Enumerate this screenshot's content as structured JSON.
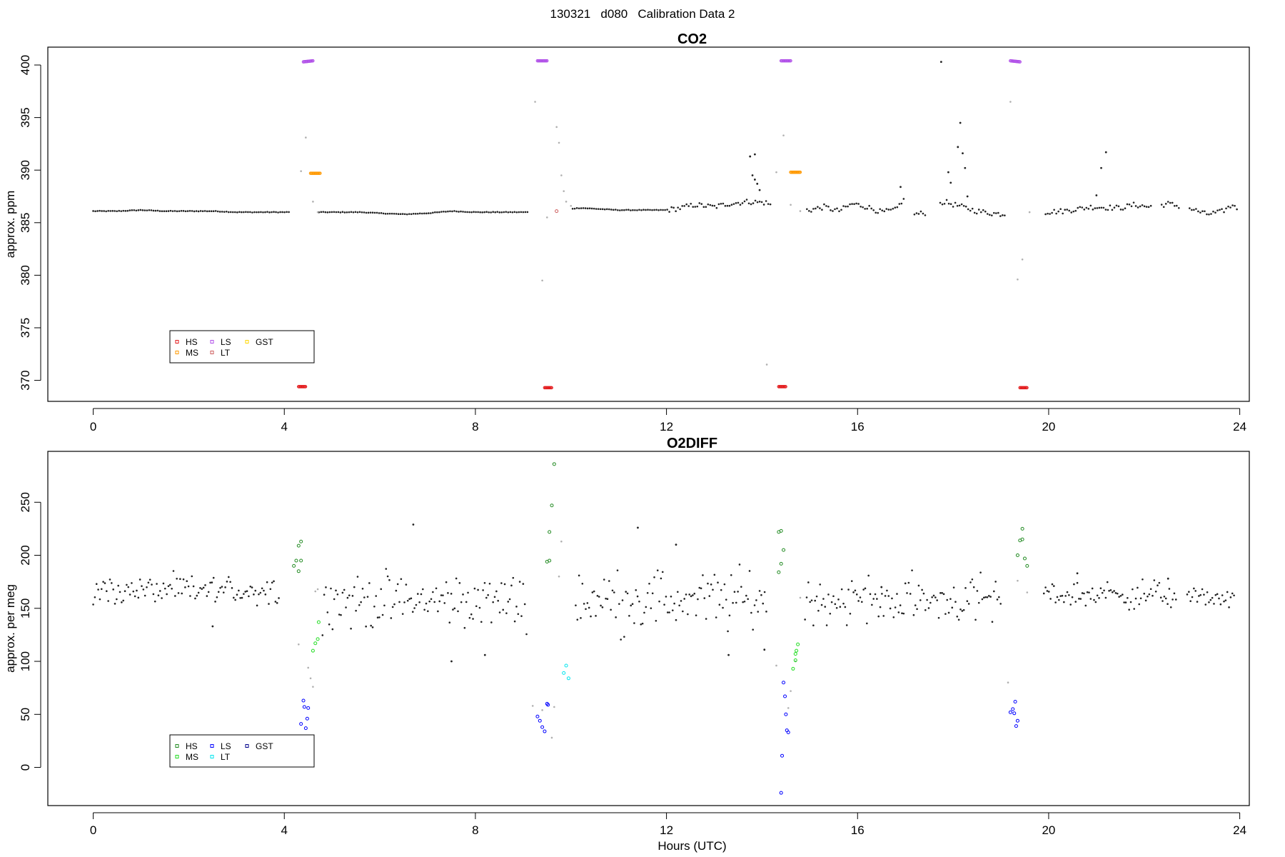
{
  "figure": {
    "title": "130321   d080   Calibration Data 2",
    "xlabel": "Hours (UTC)"
  },
  "chart_data": [
    {
      "type": "scatter",
      "title": "CO2",
      "xlabel": "",
      "ylabel": "approx. ppm",
      "xlim": [
        -0.95,
        24.2
      ],
      "ylim": [
        368,
        401.7
      ],
      "xticks": [
        0,
        4,
        8,
        12,
        16,
        20,
        24
      ],
      "yticks": [
        370,
        375,
        380,
        385,
        390,
        395,
        400
      ],
      "grid": false,
      "legend_placement": "bottom-left",
      "legend": [
        {
          "name": "HS",
          "color": "#e31a1c"
        },
        {
          "name": "LS",
          "color": "#b04fe8"
        },
        {
          "name": "GST",
          "color": "#ffd700"
        },
        {
          "name": "MS",
          "color": "#ff9900"
        },
        {
          "name": "LT",
          "color": "#cd5c5c"
        }
      ],
      "ambient": [
        [
          0.0,
          386.1
        ],
        [
          0.5,
          386.1
        ],
        [
          1.0,
          386.2
        ],
        [
          1.5,
          386.1
        ],
        [
          2.0,
          386.1
        ],
        [
          2.5,
          386.1
        ],
        [
          3.0,
          386.0
        ],
        [
          3.5,
          386.0
        ],
        [
          4.1,
          386.0
        ],
        [
          4.7,
          386.0
        ],
        [
          5.2,
          386.0
        ],
        [
          5.6,
          386.0
        ],
        [
          6.0,
          385.9
        ],
        [
          6.5,
          385.8
        ],
        [
          7.0,
          385.9
        ],
        [
          7.5,
          386.1
        ],
        [
          8.0,
          386.0
        ],
        [
          8.5,
          386.0
        ],
        [
          9.1,
          386.0
        ],
        [
          10.2,
          386.4
        ],
        [
          10.6,
          386.3
        ],
        [
          11.0,
          386.2
        ],
        [
          11.5,
          386.2
        ],
        [
          12.0,
          386.2
        ],
        [
          12.3,
          386.4
        ],
        [
          12.6,
          386.7
        ],
        [
          13.0,
          386.5
        ],
        [
          13.3,
          386.8
        ],
        [
          13.7,
          387.0
        ],
        [
          13.75,
          391.3
        ],
        [
          13.85,
          391.5
        ],
        [
          13.8,
          389.5
        ],
        [
          13.85,
          389.1
        ],
        [
          13.9,
          388.7
        ],
        [
          13.95,
          388.1
        ],
        [
          14.1,
          386.9
        ],
        [
          14.2,
          386.6
        ],
        [
          15.0,
          386.2
        ],
        [
          15.3,
          386.5
        ],
        [
          15.6,
          386.1
        ],
        [
          15.9,
          386.8
        ],
        [
          16.2,
          386.5
        ],
        [
          16.5,
          386.0
        ],
        [
          16.8,
          386.2
        ],
        [
          16.9,
          388.4
        ],
        [
          16.95,
          387.2
        ],
        [
          17.2,
          385.8
        ],
        [
          17.4,
          385.9
        ],
        [
          17.75,
          400.3
        ],
        [
          17.8,
          387.0
        ],
        [
          17.9,
          389.8
        ],
        [
          17.95,
          388.8
        ],
        [
          18.1,
          392.2
        ],
        [
          18.15,
          394.5
        ],
        [
          18.2,
          391.6
        ],
        [
          18.25,
          390.2
        ],
        [
          18.3,
          387.5
        ],
        [
          18.5,
          386.1
        ],
        [
          18.8,
          385.9
        ],
        [
          19.1,
          385.8
        ],
        [
          19.9,
          386.0
        ],
        [
          20.3,
          386.1
        ],
        [
          20.6,
          386.3
        ],
        [
          20.9,
          386.5
        ],
        [
          21.0,
          387.6
        ],
        [
          21.1,
          390.2
        ],
        [
          21.2,
          391.7
        ],
        [
          21.5,
          386.4
        ],
        [
          21.8,
          386.7
        ],
        [
          22.1,
          386.5
        ],
        [
          22.5,
          386.8
        ],
        [
          22.7,
          386.6
        ],
        [
          23.0,
          386.3
        ],
        [
          23.3,
          385.8
        ],
        [
          23.6,
          386.0
        ],
        [
          23.9,
          386.8
        ]
      ],
      "transition": [
        [
          4.1,
          371.8
        ],
        [
          4.35,
          389.9
        ],
        [
          4.45,
          393.1
        ],
        [
          4.6,
          387.0
        ],
        [
          4.7,
          386.0
        ],
        [
          9.25,
          396.5
        ],
        [
          9.4,
          379.5
        ],
        [
          9.5,
          385.5
        ],
        [
          9.7,
          394.1
        ],
        [
          9.75,
          392.6
        ],
        [
          9.8,
          389.5
        ],
        [
          9.85,
          388.0
        ],
        [
          9.9,
          387.0
        ],
        [
          10.0,
          386.6
        ],
        [
          14.1,
          371.5
        ],
        [
          14.3,
          389.8
        ],
        [
          14.45,
          393.3
        ],
        [
          14.6,
          386.7
        ],
        [
          14.8,
          386.1
        ],
        [
          19.2,
          396.5
        ],
        [
          19.35,
          379.6
        ],
        [
          19.45,
          381.5
        ],
        [
          19.6,
          386.0
        ]
      ],
      "series": [
        {
          "name": "HS",
          "color": "#e31a1c",
          "points": [
            [
              4.3,
              369.4
            ],
            [
              4.45,
              369.4
            ],
            [
              9.45,
              369.3
            ],
            [
              9.6,
              369.3
            ],
            [
              14.35,
              369.4
            ],
            [
              14.5,
              369.4
            ],
            [
              19.4,
              369.3
            ],
            [
              19.55,
              369.3
            ]
          ]
        },
        {
          "name": "LS",
          "color": "#b04fe8",
          "points": [
            [
              4.4,
              400.3
            ],
            [
              4.6,
              400.4
            ],
            [
              9.3,
              400.4
            ],
            [
              9.5,
              400.4
            ],
            [
              14.4,
              400.4
            ],
            [
              14.6,
              400.4
            ],
            [
              19.2,
              400.4
            ],
            [
              19.4,
              400.3
            ]
          ]
        },
        {
          "name": "MS",
          "color": "#ff9900",
          "points": [
            [
              4.55,
              389.7
            ],
            [
              4.75,
              389.7
            ],
            [
              14.6,
              389.8
            ],
            [
              14.8,
              389.8
            ]
          ]
        },
        {
          "name": "LT",
          "color": "#cd5c5c",
          "points": [
            [
              9.7,
              386.1
            ]
          ]
        }
      ],
      "gaps": [
        [
          4.1,
          4.7
        ],
        [
          9.1,
          10.0
        ],
        [
          14.2,
          14.9
        ],
        [
          17.0,
          17.15
        ],
        [
          17.45,
          17.7
        ],
        [
          19.1,
          19.9
        ],
        [
          22.15,
          22.35
        ],
        [
          22.75,
          22.95
        ]
      ]
    },
    {
      "type": "scatter",
      "title": "O2DIFF",
      "xlabel": "Hours (UTC)",
      "ylabel": "approx. per meg",
      "xlim": [
        -0.95,
        24.2
      ],
      "ylim": [
        -36,
        298
      ],
      "xticks": [
        0,
        4,
        8,
        12,
        16,
        20,
        24
      ],
      "yticks": [
        0,
        50,
        100,
        150,
        200,
        250
      ],
      "grid": false,
      "legend_placement": "bottom-left",
      "legend": [
        {
          "name": "HS",
          "color": "#228b22"
        },
        {
          "name": "LS",
          "color": "#0000ff"
        },
        {
          "name": "GST",
          "color": "#00008b"
        },
        {
          "name": "MS",
          "color": "#22dd22"
        },
        {
          "name": "LT",
          "color": "#00e5ee"
        }
      ],
      "ambient_band": [
        {
          "from": 0.0,
          "to": 3.9,
          "center": 167,
          "spread": 12
        },
        {
          "from": 4.8,
          "to": 9.1,
          "center": 157,
          "spread": 22
        },
        {
          "from": 10.1,
          "to": 14.1,
          "center": 158,
          "spread": 25
        },
        {
          "from": 14.9,
          "to": 19.0,
          "center": 158,
          "spread": 20
        },
        {
          "from": 19.9,
          "to": 22.7,
          "center": 163,
          "spread": 12
        },
        {
          "from": 22.9,
          "to": 23.9,
          "center": 160,
          "spread": 8
        }
      ],
      "ambient_outliers": [
        [
          2.5,
          133
        ],
        [
          6.7,
          229
        ],
        [
          7.5,
          100
        ],
        [
          8.2,
          106
        ],
        [
          11.4,
          226
        ],
        [
          12.2,
          210
        ],
        [
          13.3,
          106
        ],
        [
          14.05,
          111
        ],
        [
          16.5,
          170
        ],
        [
          20.6,
          183
        ],
        [
          22.5,
          178
        ]
      ],
      "transition": [
        [
          4.3,
          116
        ],
        [
          4.5,
          94
        ],
        [
          4.55,
          84
        ],
        [
          4.6,
          76
        ],
        [
          4.65,
          166
        ],
        [
          4.7,
          168
        ],
        [
          9.2,
          58
        ],
        [
          9.4,
          54
        ],
        [
          9.6,
          28
        ],
        [
          9.65,
          57
        ],
        [
          9.75,
          180
        ],
        [
          9.8,
          213
        ],
        [
          14.3,
          96
        ],
        [
          14.55,
          56
        ],
        [
          14.6,
          72
        ],
        [
          14.7,
          100
        ],
        [
          14.8,
          160
        ],
        [
          19.15,
          80
        ],
        [
          19.35,
          176
        ],
        [
          19.55,
          165
        ]
      ],
      "series": [
        {
          "name": "HS",
          "color": "#228b22",
          "points": [
            [
              4.2,
              190
            ],
            [
              4.25,
              195
            ],
            [
              4.3,
              209
            ],
            [
              4.35,
              213
            ],
            [
              4.3,
              185
            ],
            [
              4.35,
              195
            ],
            [
              9.5,
              194
            ],
            [
              9.55,
              222
            ],
            [
              9.6,
              247
            ],
            [
              9.65,
              286
            ],
            [
              9.55,
              195
            ],
            [
              14.35,
              222
            ],
            [
              14.4,
              223
            ],
            [
              14.45,
              205
            ],
            [
              14.35,
              184
            ],
            [
              14.4,
              192
            ],
            [
              19.35,
              200
            ],
            [
              19.4,
              214
            ],
            [
              19.45,
              225
            ],
            [
              19.5,
              197
            ],
            [
              19.55,
              190
            ],
            [
              19.45,
              215
            ]
          ]
        },
        {
          "name": "MS",
          "color": "#22dd22",
          "points": [
            [
              4.6,
              110
            ],
            [
              4.65,
              117
            ],
            [
              4.7,
              121
            ],
            [
              4.72,
              137
            ],
            [
              14.65,
              93
            ],
            [
              14.7,
              101
            ],
            [
              14.72,
              110
            ],
            [
              14.75,
              116
            ],
            [
              14.7,
              107
            ]
          ]
        },
        {
          "name": "LS",
          "color": "#0000ff",
          "points": [
            [
              4.35,
              41
            ],
            [
              4.4,
              63
            ],
            [
              4.42,
              57
            ],
            [
              4.45,
              37
            ],
            [
              4.48,
              46
            ],
            [
              4.5,
              56
            ],
            [
              9.3,
              48
            ],
            [
              9.35,
              44
            ],
            [
              9.4,
              38
            ],
            [
              9.45,
              34
            ],
            [
              9.5,
              60
            ],
            [
              9.52,
              59
            ],
            [
              14.45,
              80
            ],
            [
              14.48,
              67
            ],
            [
              14.5,
              50
            ],
            [
              14.52,
              35
            ],
            [
              14.55,
              33
            ],
            [
              14.42,
              11
            ],
            [
              14.4,
              -24
            ],
            [
              19.2,
              52
            ],
            [
              19.25,
              55
            ],
            [
              19.3,
              62
            ],
            [
              19.35,
              44
            ],
            [
              19.32,
              39
            ],
            [
              19.28,
              51
            ]
          ]
        },
        {
          "name": "LT",
          "color": "#00e5ee",
          "points": [
            [
              9.85,
              89
            ],
            [
              9.9,
              96
            ],
            [
              9.95,
              84
            ]
          ]
        }
      ],
      "gaps": [
        [
          3.95,
          4.8
        ],
        [
          9.15,
          10.05
        ],
        [
          14.15,
          14.9
        ],
        [
          19.05,
          19.9
        ],
        [
          22.7,
          22.9
        ]
      ]
    }
  ]
}
